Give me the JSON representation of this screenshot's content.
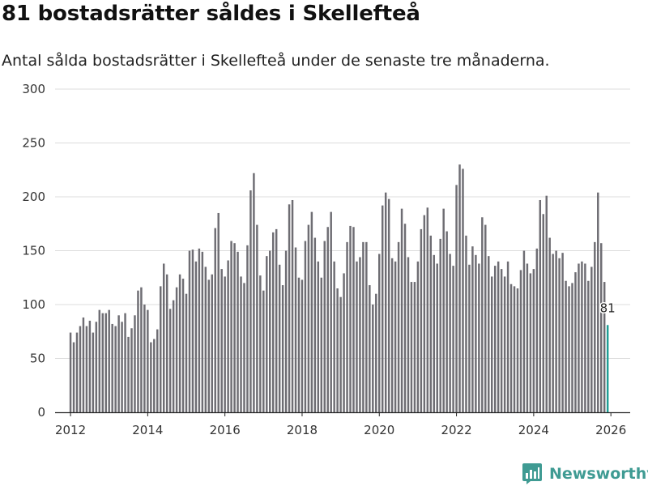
{
  "title": "81 bostadsrätter såldes i Skellefteå",
  "subtitle": "Antal sålda bostadsrätter i Skellefteå under de senaste tre månaderna.",
  "brand": "Newsworthy",
  "colors": {
    "bar": "#6e6d73",
    "highlight": "#1f9e95",
    "grid": "#dcdcdc",
    "brand": "#3f9b93"
  },
  "chart_data": {
    "type": "bar",
    "title": "81 bostadsrätter såldes i Skellefteå",
    "xlabel": "",
    "ylabel": "",
    "ylim": [
      0,
      300
    ],
    "xlim": [
      2011.6,
      2026.5
    ],
    "y_ticks": [
      0,
      50,
      100,
      150,
      200,
      250,
      300
    ],
    "x_ticks": [
      2012,
      2014,
      2016,
      2018,
      2020,
      2022,
      2024,
      2026
    ],
    "start": 2012.0,
    "step": 0.08333,
    "highlight_label": "81",
    "values": [
      74,
      65,
      74,
      80,
      88,
      80,
      85,
      74,
      84,
      95,
      92,
      92,
      95,
      82,
      80,
      90,
      84,
      92,
      70,
      78,
      90,
      113,
      116,
      100,
      95,
      65,
      68,
      77,
      117,
      138,
      128,
      96,
      104,
      116,
      128,
      124,
      110,
      150,
      151,
      140,
      152,
      149,
      135,
      123,
      128,
      171,
      185,
      133,
      126,
      141,
      159,
      157,
      149,
      126,
      120,
      155,
      206,
      222,
      174,
      127,
      113,
      145,
      150,
      167,
      170,
      137,
      118,
      150,
      193,
      197,
      153,
      125,
      123,
      159,
      174,
      186,
      162,
      140,
      125,
      159,
      172,
      186,
      140,
      115,
      107,
      129,
      158,
      173,
      172,
      140,
      144,
      158,
      158,
      118,
      100,
      110,
      147,
      192,
      204,
      198,
      143,
      140,
      158,
      189,
      175,
      144,
      121,
      121,
      140,
      170,
      183,
      190,
      164,
      146,
      138,
      161,
      189,
      168,
      147,
      136,
      211,
      230,
      226,
      164,
      137,
      154,
      146,
      138,
      181,
      174,
      145,
      126,
      136,
      140,
      133,
      126,
      140,
      119,
      117,
      115,
      132,
      150,
      138,
      129,
      133,
      152,
      197,
      184,
      201,
      162,
      147,
      150,
      143,
      148,
      122,
      117,
      120,
      130,
      138,
      140,
      138,
      122,
      135,
      158,
      204,
      157,
      121,
      81
    ]
  }
}
